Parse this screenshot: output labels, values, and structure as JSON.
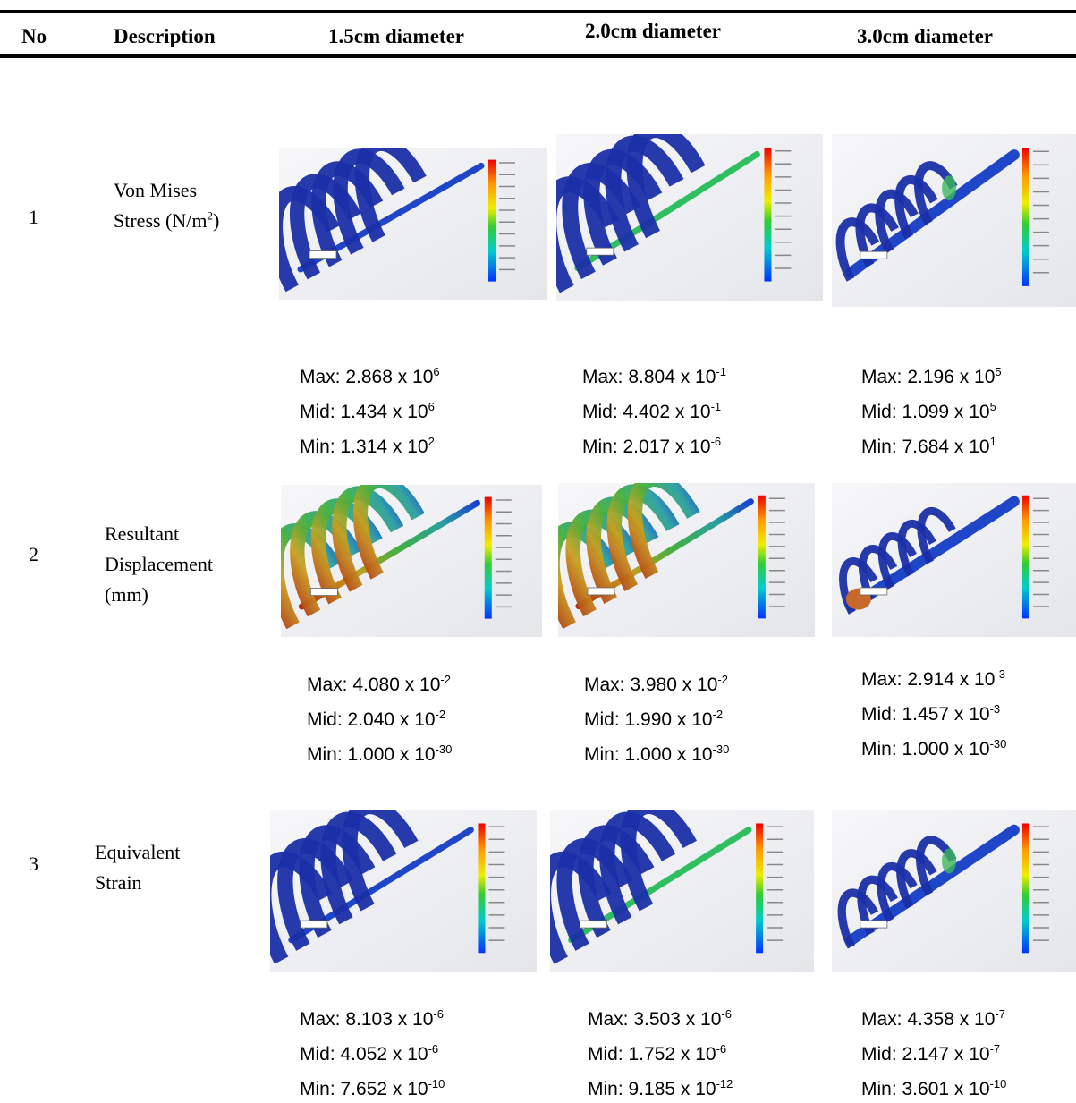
{
  "header": {
    "no": "No",
    "description": "Description",
    "columns": [
      "1.5cm diameter",
      "2.0cm diameter",
      "3.0cm diameter"
    ]
  },
  "rows": [
    {
      "no": "1",
      "description": {
        "lines": [
          "Von Mises",
          "Stress (N/m"
        ],
        "sup": "2",
        "tail": ")"
      },
      "results": [
        [
          {
            "base": "Max: 2.868 x 10",
            "exp": "6"
          },
          {
            "base": "Mid: 1.434 x 10",
            "exp": "6"
          },
          {
            "base": "Min: 1.314 x 10",
            "exp": "2"
          }
        ],
        [
          {
            "base": "Max: 8.804 x 10",
            "exp": "-1"
          },
          {
            "base": "Mid: 4.402 x 10",
            "exp": "-1"
          },
          {
            "base": "Min: 2.017 x 10",
            "exp": "-6"
          }
        ],
        [
          {
            "base": "Max: 2.196 x 10",
            "exp": "5"
          },
          {
            "base": "Mid: 1.099 x 10",
            "exp": "5"
          },
          {
            "base": "Min: 7.684 x 10",
            "exp": "1"
          }
        ]
      ]
    },
    {
      "no": "2",
      "description": {
        "lines": [
          "Resultant",
          "Displacement",
          "(mm)"
        ]
      },
      "results": [
        [
          {
            "base": "Max: 4.080 x 10",
            "exp": "-2"
          },
          {
            "base": "Mid: 2.040 x 10",
            "exp": "-2"
          },
          {
            "base": "Min: 1.000 x 10",
            "exp": "-30"
          }
        ],
        [
          {
            "base": "Max: 3.980 x 10",
            "exp": "-2"
          },
          {
            "base": "Mid: 1.990 x 10",
            "exp": "-2"
          },
          {
            "base": "Min: 1.000 x 10",
            "exp": "-30"
          }
        ],
        [
          {
            "base": "Max: 2.914 x 10",
            "exp": "-3"
          },
          {
            "base": "Mid: 1.457 x 10",
            "exp": "-3"
          },
          {
            "base": "Min: 1.000 x 10",
            "exp": "-30"
          }
        ]
      ]
    },
    {
      "no": "3",
      "description": {
        "lines": [
          "Equivalent",
          "Strain"
        ]
      },
      "results": [
        [
          {
            "base": "Max: 8.103 x 10",
            "exp": "-6"
          },
          {
            "base": "Mid: 4.052 x 10",
            "exp": "-6"
          },
          {
            "base": "Min: 7.652 x 10",
            "exp": "-10"
          }
        ],
        [
          {
            "base": "Max: 3.503 x 10",
            "exp": "-6"
          },
          {
            "base": "Mid: 1.752 x 10",
            "exp": "-6"
          },
          {
            "base": "Min: 9.185 x 10",
            "exp": "-12"
          }
        ],
        [
          {
            "base": "Max: 4.358 x 10",
            "exp": "-7"
          },
          {
            "base": "Mid: 2.147 x 10",
            "exp": "-7"
          },
          {
            "base": "Min: 3.601 x 10",
            "exp": "-10"
          }
        ]
      ]
    }
  ]
}
